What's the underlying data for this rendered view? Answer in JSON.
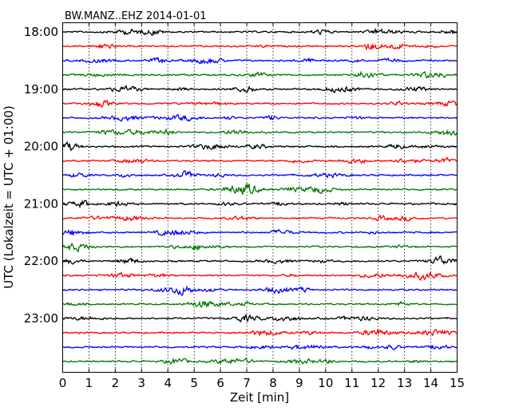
{
  "chart_data": {
    "type": "line",
    "title": "BW.MANZ..EHZ 2014-01-01",
    "xlabel": "Zeit  [min]",
    "ylabel": "UTC (Lokalzeit = UTC + 01:00)",
    "xlim": [
      0,
      15
    ],
    "x_ticks": [
      "0",
      "1",
      "2",
      "3",
      "4",
      "5",
      "6",
      "7",
      "8",
      "9",
      "10",
      "11",
      "12",
      "13",
      "14",
      "15"
    ],
    "y_tick_labels": [
      "18:00",
      "19:00",
      "20:00",
      "21:00",
      "22:00",
      "23:00"
    ],
    "start_time": "18:00",
    "trace_interval_min": 15,
    "trace_count": 24,
    "trace_colors": [
      "#000000",
      "#ff0000",
      "#0000ff",
      "#007700"
    ],
    "grid": "vertical-dotted"
  }
}
